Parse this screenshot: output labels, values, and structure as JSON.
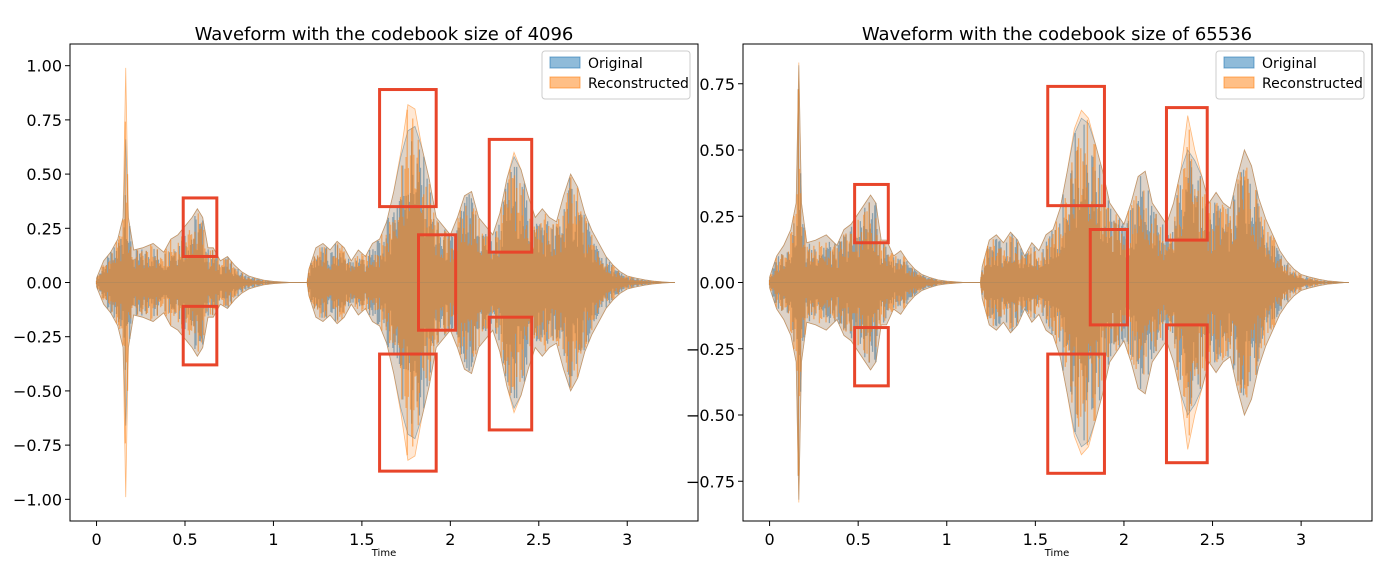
{
  "chart_data": [
    {
      "type": "area",
      "title": "Waveform with the codebook size of 4096",
      "xlabel": "Time",
      "ylabel": "",
      "xlim": [
        -0.15,
        3.4
      ],
      "ylim": [
        -1.1,
        1.1
      ],
      "xticks": [
        0,
        0.5,
        1,
        1.5,
        2,
        2.5,
        3
      ],
      "xtick_labels": [
        "0",
        "0.5",
        "1",
        "1.5",
        "2",
        "2.5",
        "3"
      ],
      "yticks": [
        1.0,
        0.75,
        0.5,
        0.25,
        0.0,
        -0.25,
        -0.5,
        -0.75,
        -1.0
      ],
      "ytick_labels": [
        "1.00",
        "0.75",
        "0.50",
        "0.25",
        "0.00",
        "−0.25",
        "−0.50",
        "−0.75",
        "−1.00"
      ],
      "legend_position": "top-right",
      "series": [
        {
          "name": "Original",
          "color": "#1f77b4",
          "envelope_time": [
            0.0,
            0.04,
            0.08,
            0.12,
            0.15,
            0.165,
            0.18,
            0.21,
            0.26,
            0.32,
            0.38,
            0.42,
            0.46,
            0.5,
            0.54,
            0.57,
            0.6,
            0.63,
            0.66,
            0.7,
            0.74,
            0.78,
            0.82,
            0.86,
            0.9,
            0.95,
            1.0,
            1.1,
            1.19,
            1.2,
            1.24,
            1.28,
            1.32,
            1.36,
            1.4,
            1.44,
            1.48,
            1.52,
            1.56,
            1.6,
            1.64,
            1.68,
            1.72,
            1.76,
            1.8,
            1.84,
            1.88,
            1.92,
            1.96,
            2.0,
            2.04,
            2.08,
            2.12,
            2.16,
            2.2,
            2.24,
            2.28,
            2.32,
            2.36,
            2.4,
            2.44,
            2.48,
            2.52,
            2.56,
            2.6,
            2.64,
            2.68,
            2.72,
            2.76,
            2.8,
            2.84,
            2.88,
            2.92,
            2.96,
            3.0,
            3.05,
            3.1,
            3.15,
            3.2,
            3.25
          ],
          "envelope_amplitude": [
            0.02,
            0.1,
            0.14,
            0.2,
            0.3,
            0.66,
            0.3,
            0.15,
            0.16,
            0.18,
            0.14,
            0.2,
            0.22,
            0.26,
            0.3,
            0.34,
            0.3,
            0.16,
            0.16,
            0.1,
            0.12,
            0.08,
            0.05,
            0.03,
            0.02,
            0.01,
            0.005,
            0.0,
            0.0,
            0.06,
            0.16,
            0.18,
            0.15,
            0.19,
            0.16,
            0.1,
            0.15,
            0.12,
            0.18,
            0.2,
            0.28,
            0.42,
            0.58,
            0.7,
            0.72,
            0.62,
            0.48,
            0.3,
            0.26,
            0.22,
            0.3,
            0.4,
            0.42,
            0.3,
            0.26,
            0.22,
            0.32,
            0.48,
            0.58,
            0.52,
            0.4,
            0.3,
            0.34,
            0.3,
            0.28,
            0.4,
            0.5,
            0.44,
            0.32,
            0.24,
            0.18,
            0.12,
            0.08,
            0.05,
            0.03,
            0.02,
            0.012,
            0.006,
            0.003,
            0.0
          ]
        },
        {
          "name": "Reconstructed",
          "color": "#ff7f0e",
          "envelope_time": [
            0.0,
            0.04,
            0.08,
            0.12,
            0.15,
            0.165,
            0.18,
            0.21,
            0.26,
            0.32,
            0.38,
            0.42,
            0.46,
            0.5,
            0.54,
            0.57,
            0.6,
            0.63,
            0.66,
            0.7,
            0.74,
            0.78,
            0.82,
            0.86,
            0.9,
            0.95,
            1.0,
            1.1,
            1.19,
            1.2,
            1.24,
            1.28,
            1.32,
            1.36,
            1.4,
            1.44,
            1.48,
            1.52,
            1.56,
            1.6,
            1.64,
            1.68,
            1.72,
            1.76,
            1.8,
            1.84,
            1.88,
            1.92,
            1.96,
            2.0,
            2.04,
            2.08,
            2.12,
            2.16,
            2.2,
            2.24,
            2.28,
            2.32,
            2.36,
            2.4,
            2.44,
            2.48,
            2.52,
            2.56,
            2.6,
            2.64,
            2.68,
            2.72,
            2.76,
            2.8,
            2.84,
            2.88,
            2.92,
            2.96,
            3.0,
            3.05,
            3.1,
            3.15,
            3.2,
            3.25
          ],
          "envelope_amplitude": [
            0.02,
            0.1,
            0.14,
            0.2,
            0.3,
            0.99,
            0.3,
            0.15,
            0.16,
            0.18,
            0.14,
            0.2,
            0.22,
            0.26,
            0.3,
            0.34,
            0.3,
            0.16,
            0.16,
            0.1,
            0.12,
            0.08,
            0.05,
            0.03,
            0.02,
            0.01,
            0.005,
            0.0,
            0.0,
            0.06,
            0.16,
            0.18,
            0.15,
            0.19,
            0.16,
            0.1,
            0.15,
            0.12,
            0.18,
            0.2,
            0.28,
            0.42,
            0.6,
            0.82,
            0.8,
            0.62,
            0.48,
            0.3,
            0.26,
            0.22,
            0.3,
            0.4,
            0.42,
            0.3,
            0.26,
            0.22,
            0.32,
            0.48,
            0.6,
            0.52,
            0.4,
            0.3,
            0.34,
            0.3,
            0.28,
            0.4,
            0.5,
            0.44,
            0.32,
            0.24,
            0.18,
            0.12,
            0.08,
            0.05,
            0.03,
            0.02,
            0.012,
            0.006,
            0.003,
            0.0
          ]
        }
      ],
      "highlight_boxes": [
        {
          "x": [
            0.49,
            0.68
          ],
          "y": [
            0.12,
            0.39
          ]
        },
        {
          "x": [
            0.49,
            0.68
          ],
          "y": [
            -0.38,
            -0.11
          ]
        },
        {
          "x": [
            1.6,
            1.92
          ],
          "y": [
            0.35,
            0.89
          ]
        },
        {
          "x": [
            1.6,
            1.92
          ],
          "y": [
            -0.87,
            -0.33
          ]
        },
        {
          "x": [
            1.82,
            2.03
          ],
          "y": [
            -0.22,
            0.22
          ]
        },
        {
          "x": [
            2.22,
            2.46
          ],
          "y": [
            0.14,
            0.66
          ]
        },
        {
          "x": [
            2.22,
            2.46
          ],
          "y": [
            -0.68,
            -0.16
          ]
        }
      ]
    },
    {
      "type": "area",
      "title": "Waveform with the codebook size of 65536",
      "xlabel": "Time",
      "ylabel": "",
      "xlim": [
        -0.15,
        3.4
      ],
      "ylim": [
        -0.9,
        0.9
      ],
      "xticks": [
        0,
        0.5,
        1,
        1.5,
        2,
        2.5,
        3
      ],
      "xtick_labels": [
        "0",
        "0.5",
        "1",
        "1.5",
        "2",
        "2.5",
        "3"
      ],
      "yticks": [
        0.75,
        0.5,
        0.25,
        0.0,
        -0.25,
        -0.5,
        -0.75
      ],
      "ytick_labels": [
        "0.75",
        "0.50",
        "0.25",
        "0.00",
        "−0.25",
        "−0.50",
        "−0.75"
      ],
      "legend_position": "top-right",
      "series": [
        {
          "name": "Original",
          "color": "#1f77b4",
          "envelope_time": [
            0.0,
            0.04,
            0.08,
            0.12,
            0.15,
            0.165,
            0.18,
            0.21,
            0.26,
            0.32,
            0.38,
            0.42,
            0.46,
            0.5,
            0.54,
            0.57,
            0.6,
            0.63,
            0.66,
            0.7,
            0.74,
            0.78,
            0.82,
            0.86,
            0.9,
            0.95,
            1.0,
            1.1,
            1.19,
            1.2,
            1.24,
            1.28,
            1.32,
            1.36,
            1.4,
            1.44,
            1.48,
            1.52,
            1.56,
            1.6,
            1.64,
            1.68,
            1.72,
            1.76,
            1.8,
            1.84,
            1.88,
            1.92,
            1.96,
            2.0,
            2.04,
            2.08,
            2.12,
            2.16,
            2.2,
            2.24,
            2.28,
            2.32,
            2.36,
            2.4,
            2.44,
            2.48,
            2.52,
            2.56,
            2.6,
            2.64,
            2.68,
            2.72,
            2.76,
            2.8,
            2.84,
            2.88,
            2.92,
            2.96,
            3.0,
            3.05,
            3.1,
            3.15,
            3.2,
            3.25
          ],
          "envelope_amplitude": [
            0.02,
            0.1,
            0.14,
            0.2,
            0.3,
            0.82,
            0.3,
            0.15,
            0.16,
            0.18,
            0.14,
            0.2,
            0.22,
            0.26,
            0.3,
            0.33,
            0.3,
            0.16,
            0.16,
            0.1,
            0.12,
            0.08,
            0.05,
            0.03,
            0.02,
            0.01,
            0.005,
            0.0,
            0.0,
            0.06,
            0.16,
            0.18,
            0.15,
            0.19,
            0.16,
            0.1,
            0.15,
            0.12,
            0.18,
            0.2,
            0.28,
            0.42,
            0.56,
            0.62,
            0.6,
            0.52,
            0.42,
            0.3,
            0.26,
            0.22,
            0.3,
            0.4,
            0.42,
            0.3,
            0.26,
            0.22,
            0.3,
            0.42,
            0.5,
            0.46,
            0.4,
            0.3,
            0.34,
            0.3,
            0.28,
            0.4,
            0.5,
            0.44,
            0.32,
            0.24,
            0.18,
            0.12,
            0.08,
            0.05,
            0.03,
            0.02,
            0.012,
            0.006,
            0.003,
            0.0
          ]
        },
        {
          "name": "Reconstructed",
          "color": "#ff7f0e",
          "envelope_time": [
            0.0,
            0.04,
            0.08,
            0.12,
            0.15,
            0.165,
            0.18,
            0.21,
            0.26,
            0.32,
            0.38,
            0.42,
            0.46,
            0.5,
            0.54,
            0.57,
            0.6,
            0.63,
            0.66,
            0.7,
            0.74,
            0.78,
            0.82,
            0.86,
            0.9,
            0.95,
            1.0,
            1.1,
            1.19,
            1.2,
            1.24,
            1.28,
            1.32,
            1.36,
            1.4,
            1.44,
            1.48,
            1.52,
            1.56,
            1.6,
            1.64,
            1.68,
            1.72,
            1.76,
            1.8,
            1.84,
            1.88,
            1.92,
            1.96,
            2.0,
            2.04,
            2.08,
            2.12,
            2.16,
            2.2,
            2.24,
            2.28,
            2.32,
            2.36,
            2.4,
            2.44,
            2.48,
            2.52,
            2.56,
            2.6,
            2.64,
            2.68,
            2.72,
            2.76,
            2.8,
            2.84,
            2.88,
            2.92,
            2.96,
            3.0,
            3.05,
            3.1,
            3.15,
            3.2,
            3.25
          ],
          "envelope_amplitude": [
            0.02,
            0.1,
            0.14,
            0.2,
            0.3,
            0.83,
            0.3,
            0.15,
            0.16,
            0.18,
            0.14,
            0.2,
            0.22,
            0.26,
            0.3,
            0.33,
            0.3,
            0.16,
            0.16,
            0.1,
            0.12,
            0.08,
            0.05,
            0.03,
            0.02,
            0.01,
            0.005,
            0.0,
            0.0,
            0.06,
            0.16,
            0.18,
            0.15,
            0.19,
            0.16,
            0.1,
            0.15,
            0.12,
            0.18,
            0.2,
            0.28,
            0.42,
            0.58,
            0.65,
            0.62,
            0.52,
            0.42,
            0.3,
            0.26,
            0.22,
            0.3,
            0.4,
            0.42,
            0.3,
            0.26,
            0.22,
            0.3,
            0.42,
            0.63,
            0.5,
            0.4,
            0.3,
            0.34,
            0.3,
            0.28,
            0.4,
            0.5,
            0.44,
            0.32,
            0.24,
            0.18,
            0.12,
            0.08,
            0.05,
            0.03,
            0.02,
            0.012,
            0.006,
            0.003,
            0.0
          ]
        }
      ],
      "highlight_boxes": [
        {
          "x": [
            0.48,
            0.67
          ],
          "y": [
            0.15,
            0.37
          ]
        },
        {
          "x": [
            0.48,
            0.67
          ],
          "y": [
            -0.39,
            -0.17
          ]
        },
        {
          "x": [
            1.57,
            1.89
          ],
          "y": [
            0.29,
            0.74
          ]
        },
        {
          "x": [
            1.57,
            1.89
          ],
          "y": [
            -0.72,
            -0.27
          ]
        },
        {
          "x": [
            1.81,
            2.02
          ],
          "y": [
            -0.16,
            0.2
          ]
        },
        {
          "x": [
            2.24,
            2.47
          ],
          "y": [
            0.16,
            0.66
          ]
        },
        {
          "x": [
            2.24,
            2.47
          ],
          "y": [
            -0.68,
            -0.16
          ]
        }
      ]
    }
  ]
}
